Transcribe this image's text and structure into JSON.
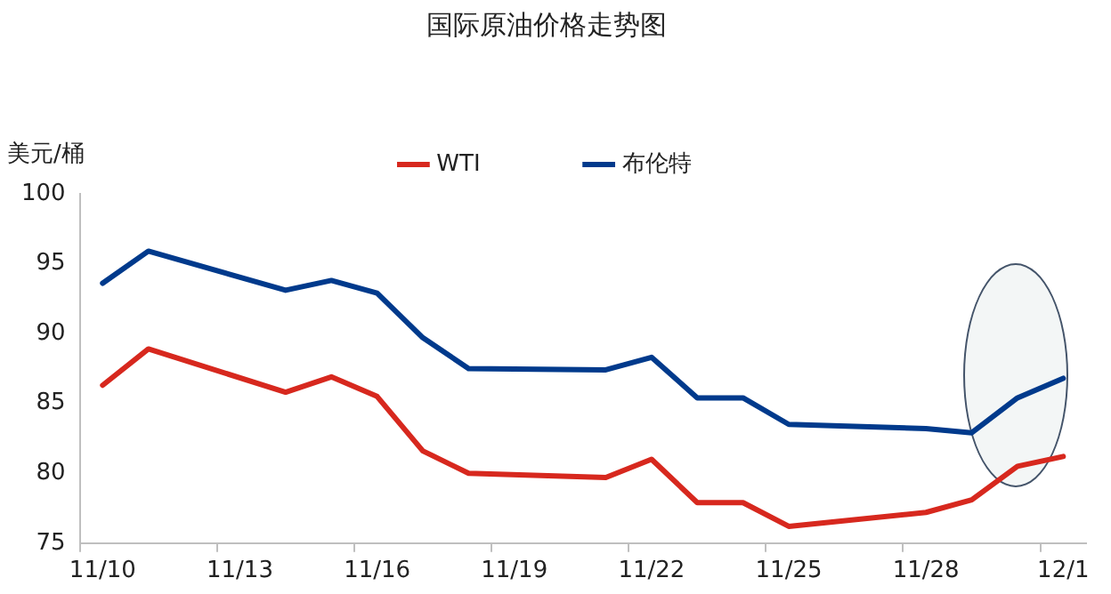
{
  "chart_data": {
    "type": "line",
    "title": "国际原油价格走势图",
    "ylabel": "美元/桶",
    "categories": [
      "11/10",
      null,
      null,
      "11/13",
      null,
      null,
      "11/16",
      null,
      null,
      "11/19",
      null,
      null,
      "11/22",
      null,
      null,
      "11/25",
      null,
      null,
      "11/28",
      null,
      null,
      "12/1"
    ],
    "series": [
      {
        "name": "WTI",
        "color": "#d7281e",
        "values": [
          86.3,
          88.9,
          null,
          null,
          85.8,
          86.9,
          85.5,
          81.6,
          80.0,
          null,
          null,
          79.7,
          81.0,
          77.9,
          77.9,
          76.2,
          null,
          null,
          77.2,
          78.1,
          80.5,
          81.2
        ]
      },
      {
        "name": "布伦特",
        "color": "#003a8c",
        "values": [
          93.6,
          95.9,
          null,
          null,
          93.1,
          93.8,
          92.9,
          89.7,
          87.5,
          null,
          null,
          87.4,
          88.3,
          85.4,
          85.4,
          83.5,
          null,
          null,
          83.2,
          82.9,
          85.4,
          86.8
        ]
      }
    ],
    "ylim": [
      75,
      100
    ],
    "yticks": [
      75,
      80,
      85,
      90,
      95,
      100
    ],
    "grid": false,
    "legend": "top",
    "marker": "none",
    "line_style": "solid"
  }
}
